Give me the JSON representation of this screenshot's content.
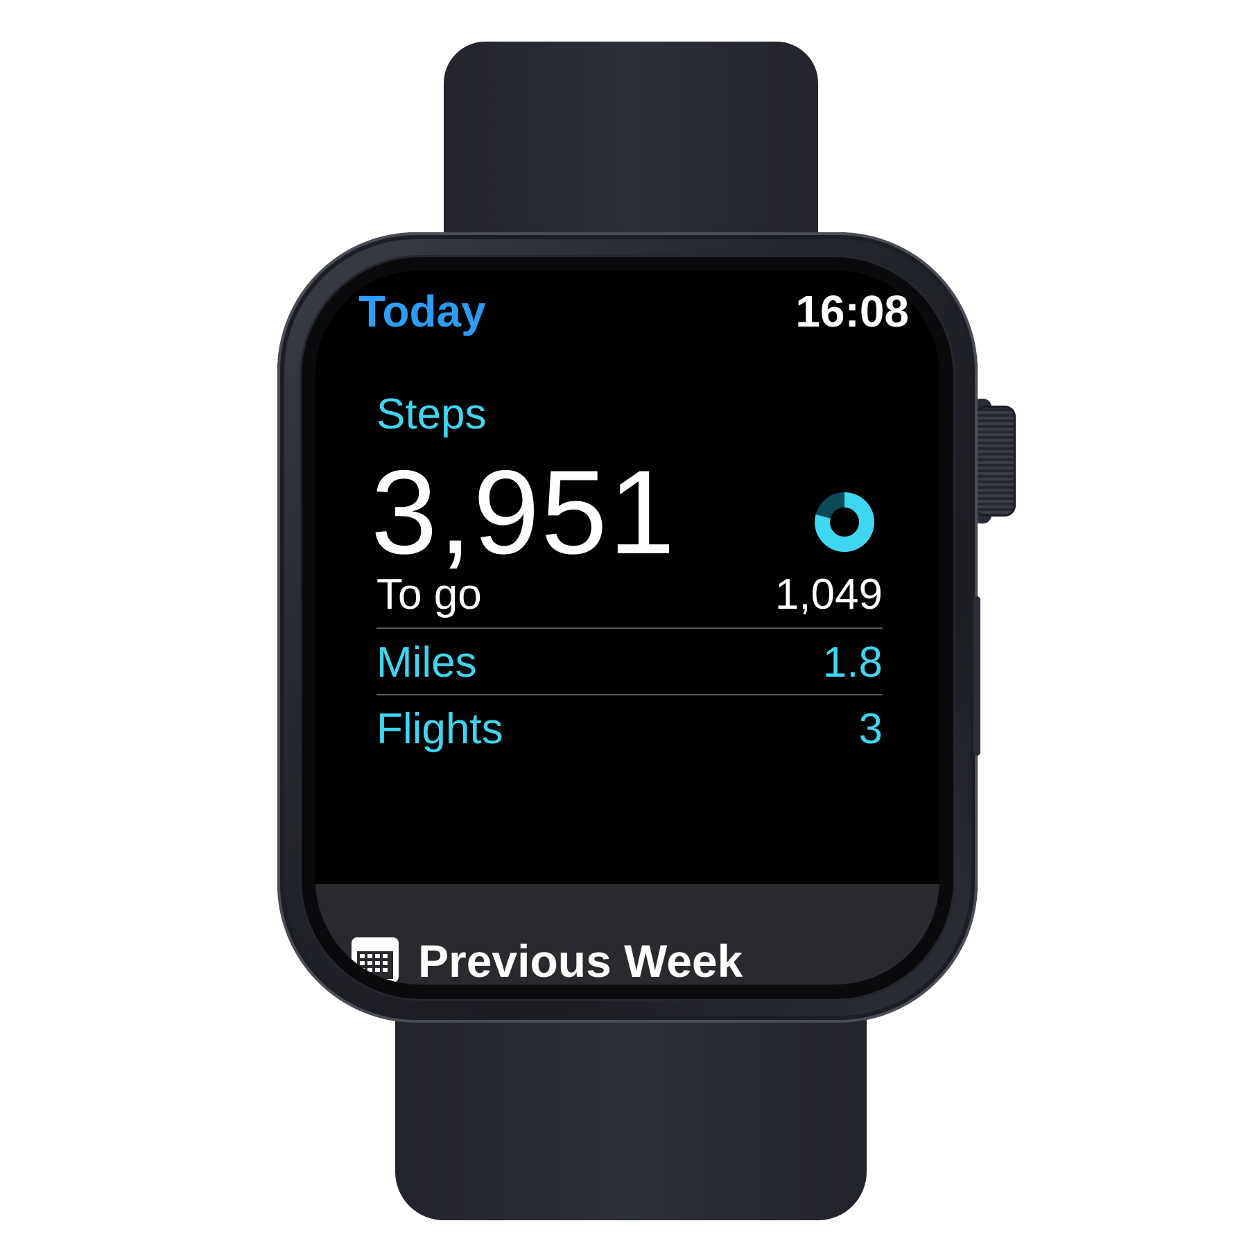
{
  "header": {
    "title": "Today",
    "time": "16:08"
  },
  "steps": {
    "label": "Steps",
    "value": "3,951",
    "goal_progress": 0.79
  },
  "stats": [
    {
      "label": "To go",
      "value": "1,049",
      "color": "#ffffff"
    },
    {
      "label": "Miles",
      "value": "1.8",
      "color": "#3fd6f2"
    },
    {
      "label": "Flights",
      "value": "3",
      "color": "#3fd6f2"
    }
  ],
  "footer": {
    "label": "Previous Week",
    "icon": "calendar-icon"
  },
  "colors": {
    "accent_blue": "#2d9cf5",
    "accent_cyan": "#3fd6f2",
    "background": "#000000"
  }
}
